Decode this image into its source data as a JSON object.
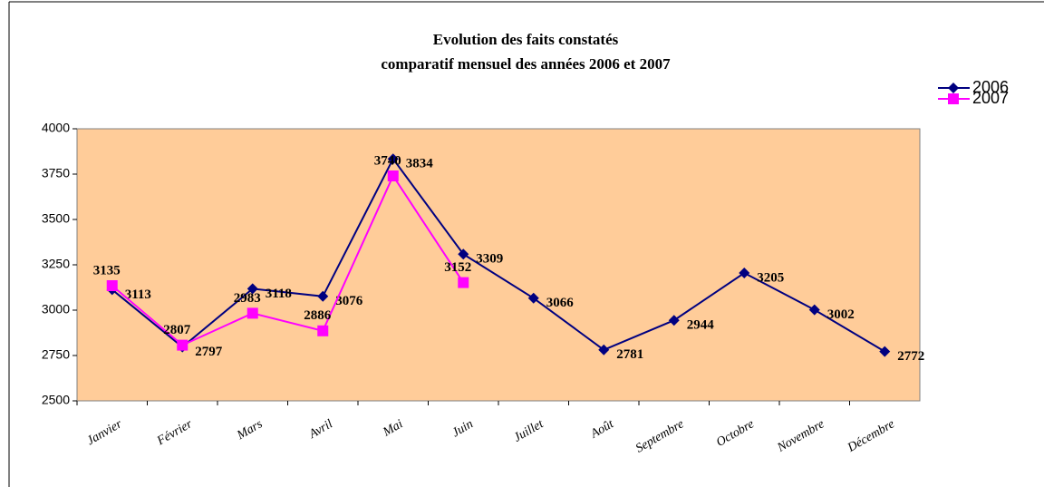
{
  "chart_data": {
    "type": "line",
    "title": "Evolution des faits constatés",
    "subtitle": "comparatif mensuel des années 2006 et 2007",
    "categories": [
      "Janvier",
      "Février",
      "Mars",
      "Avril",
      "Mai",
      "Juin",
      "Juillet",
      "Août",
      "Septembre",
      "Octobre",
      "Novembre",
      "Décembre"
    ],
    "series": [
      {
        "name": "2006",
        "color": "#000080",
        "marker": "diamond",
        "values": [
          3113,
          2797,
          3118,
          3076,
          3834,
          3309,
          3066,
          2781,
          2944,
          3205,
          3002,
          2772
        ]
      },
      {
        "name": "2007",
        "color": "#ff00ff",
        "marker": "square",
        "values": [
          3135,
          2807,
          2983,
          2886,
          3740,
          3152,
          null,
          null,
          null,
          null,
          null,
          null
        ]
      }
    ],
    "ylim": [
      2500,
      4000
    ],
    "yticks": [
      2500,
      2750,
      3000,
      3250,
      3500,
      3750,
      4000
    ],
    "plot_background": "#ffcc99",
    "legend": "top-right"
  }
}
